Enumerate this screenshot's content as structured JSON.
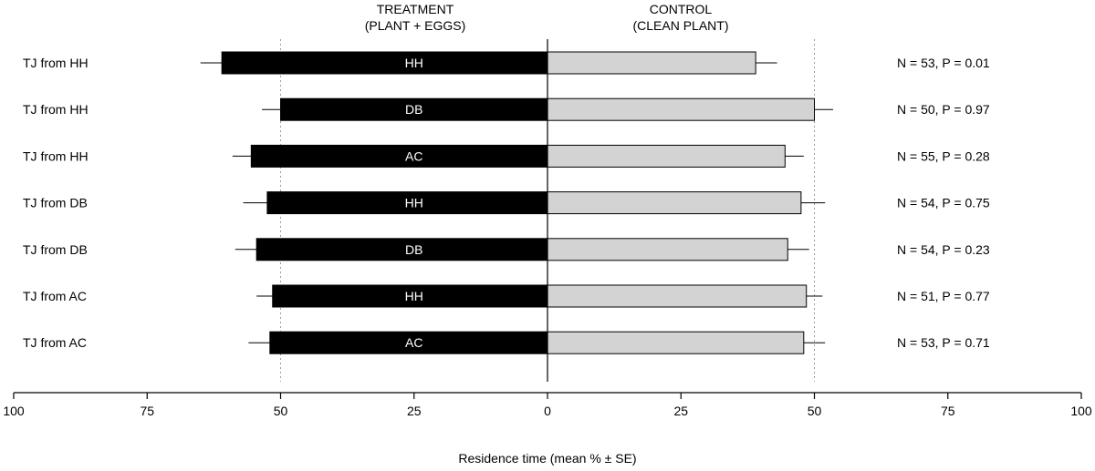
{
  "chart_data": {
    "type": "bar",
    "xlabel": "Residence time (mean % ± SE)",
    "xlim": [
      -100,
      100
    ],
    "x_ticks": [
      {
        "value": -100,
        "label": "100"
      },
      {
        "value": -75,
        "label": "75"
      },
      {
        "value": -50,
        "label": "50"
      },
      {
        "value": -25,
        "label": "25"
      },
      {
        "value": 0,
        "label": "0"
      },
      {
        "value": 25,
        "label": "25"
      },
      {
        "value": 50,
        "label": "50"
      },
      {
        "value": 75,
        "label": "75"
      },
      {
        "value": 100,
        "label": "100"
      }
    ],
    "reference_lines": [
      -50,
      50
    ],
    "headers": {
      "treatment": [
        "TREATMENT",
        "(PLANT + EGGS)"
      ],
      "control": [
        "CONTROL",
        "(CLEAN PLANT)"
      ]
    },
    "colors": {
      "treatment": "#000000",
      "control": "#d3d3d3",
      "reference_line": "#9a9a9a"
    },
    "series": [
      {
        "key": "treatment"
      },
      {
        "key": "control"
      }
    ],
    "rows": [
      {
        "label": "TJ from HH",
        "egg_source": "HH",
        "treatment": 61,
        "treatment_se": 4,
        "control": 39,
        "control_se": 4,
        "stat": "N = 53,  P = 0.01"
      },
      {
        "label": "TJ from HH",
        "egg_source": "DB",
        "treatment": 50,
        "treatment_se": 3.5,
        "control": 50,
        "control_se": 3.5,
        "stat": "N = 50,  P = 0.97"
      },
      {
        "label": "TJ from HH",
        "egg_source": "AC",
        "treatment": 55.5,
        "treatment_se": 3.5,
        "control": 44.5,
        "control_se": 3.5,
        "stat": "N = 55,  P = 0.28"
      },
      {
        "label": "TJ from DB",
        "egg_source": "HH",
        "treatment": 52.5,
        "treatment_se": 4.5,
        "control": 47.5,
        "control_se": 4.5,
        "stat": "N = 54,  P = 0.75"
      },
      {
        "label": "TJ from DB",
        "egg_source": "DB",
        "treatment": 54.5,
        "treatment_se": 4,
        "control": 45,
        "control_se": 4,
        "stat": "N = 54,  P = 0.23"
      },
      {
        "label": "TJ from AC",
        "egg_source": "HH",
        "treatment": 51.5,
        "treatment_se": 3,
        "control": 48.5,
        "control_se": 3,
        "stat": "N = 51,  P = 0.77"
      },
      {
        "label": "TJ from AC",
        "egg_source": "AC",
        "treatment": 52,
        "treatment_se": 4,
        "control": 48,
        "control_se": 4,
        "stat": "N = 53,  P = 0.71"
      }
    ]
  }
}
